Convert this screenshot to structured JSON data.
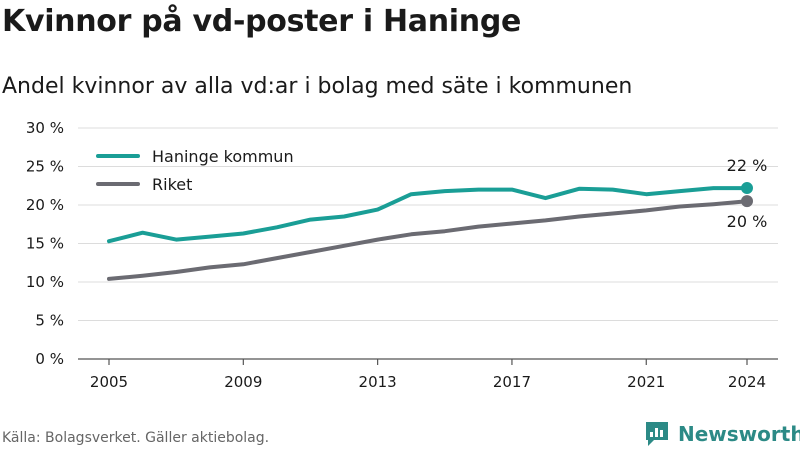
{
  "title": "Kvinnor på vd-poster i Haninge",
  "subtitle": "Andel kvinnor av alla vd:ar i bolag med säte i kommunen",
  "source": "Källa: Bolagsverket. Gäller aktiebolag.",
  "brand": {
    "name": "Newsworthy",
    "color": "#2c8a86"
  },
  "chart_data": {
    "type": "line",
    "x": [
      2005,
      2006,
      2007,
      2008,
      2009,
      2010,
      2011,
      2012,
      2013,
      2014,
      2015,
      2016,
      2017,
      2018,
      2019,
      2020,
      2021,
      2022,
      2023,
      2024
    ],
    "series": [
      {
        "name": "Haninge kommun",
        "color": "#1a9e96",
        "values": [
          15.3,
          16.4,
          15.5,
          15.9,
          16.3,
          17.1,
          18.1,
          18.5,
          19.4,
          21.4,
          21.8,
          22.0,
          22.0,
          20.9,
          22.1,
          22.0,
          21.4,
          21.8,
          22.2,
          22.2
        ],
        "end_label": "22 %"
      },
      {
        "name": "Riket",
        "color": "#6b6b72",
        "values": [
          10.4,
          10.8,
          11.3,
          11.9,
          12.3,
          13.1,
          13.9,
          14.7,
          15.5,
          16.2,
          16.6,
          17.2,
          17.6,
          18.0,
          18.5,
          18.9,
          19.3,
          19.8,
          20.1,
          20.5
        ],
        "end_label": "20 %"
      }
    ],
    "yticks": [
      0,
      5,
      10,
      15,
      20,
      25,
      30
    ],
    "ytick_labels": [
      "0 %",
      "5 %",
      "10 %",
      "15 %",
      "20 %",
      "25 %",
      "30 %"
    ],
    "xticks": [
      2005,
      2009,
      2013,
      2017,
      2021,
      2024
    ],
    "xtick_labels": [
      "2005",
      "2009",
      "2013",
      "2017",
      "2021",
      "2024"
    ],
    "xlim": [
      2005,
      2024
    ],
    "ylim": [
      0,
      30
    ],
    "grid": true,
    "legend": "top-left"
  }
}
